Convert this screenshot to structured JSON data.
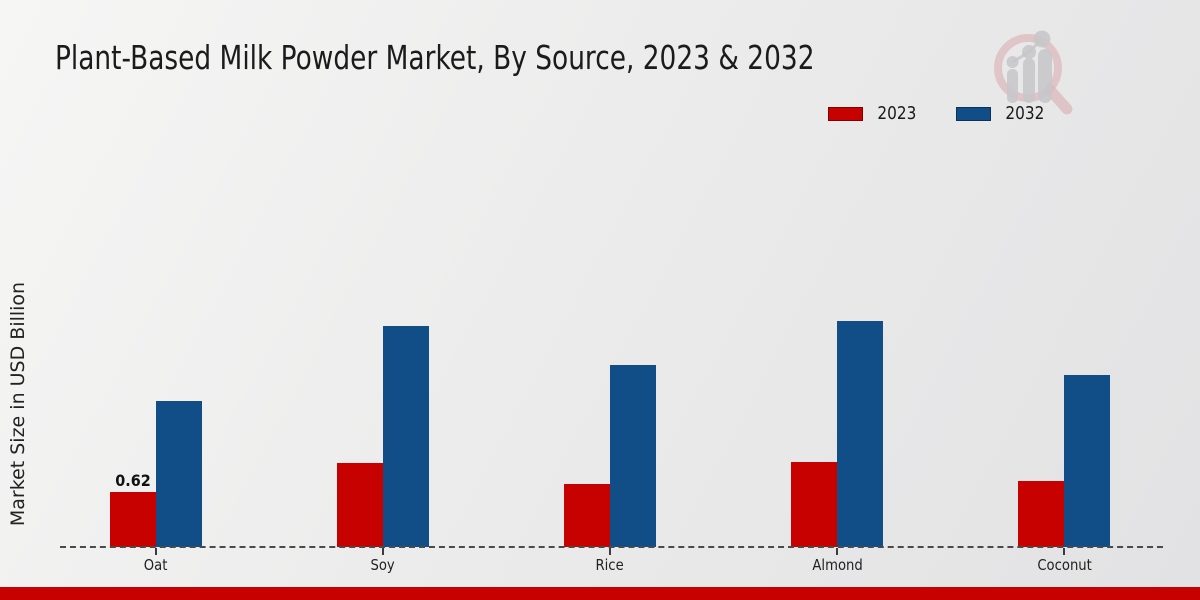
{
  "header": {
    "title": "Plant-Based Milk Powder Market, By Source, 2023 & 2032"
  },
  "y_axis": {
    "label": "Market Size in USD Billion"
  },
  "legend": {
    "items": [
      {
        "label": "2023",
        "color": "#c70000"
      },
      {
        "label": "2032",
        "color": "#114e87"
      }
    ]
  },
  "chart_data": {
    "type": "bar",
    "title": "Plant-Based Milk Powder Market, By Source, 2023 & 2032",
    "categories": [
      "Oat",
      "Soy",
      "Rice",
      "Almond",
      "Coconut"
    ],
    "series": [
      {
        "name": "2023",
        "color": "#c70000",
        "values": [
          0.62,
          0.95,
          0.71,
          0.96,
          0.74
        ],
        "value_labels": [
          "0.62",
          "",
          "",
          "",
          ""
        ]
      },
      {
        "name": "2032",
        "color": "#114e87",
        "values": [
          1.65,
          2.49,
          2.05,
          2.55,
          1.94
        ],
        "value_labels": [
          "",
          "",
          "",
          "",
          ""
        ]
      }
    ],
    "xlabel": "",
    "ylabel": "Market Size in USD Billion",
    "ylim": [
      0,
      2.8
    ],
    "grid": false,
    "legend_position": "top-right",
    "x_axis_style": "dashed",
    "annotations": [
      {
        "category": "Oat",
        "series": "2023",
        "text": "0.62"
      }
    ]
  },
  "branding": {
    "logo_name": "magnifier-bar-chart-watermark",
    "footer_bar_color": "#c70000"
  }
}
